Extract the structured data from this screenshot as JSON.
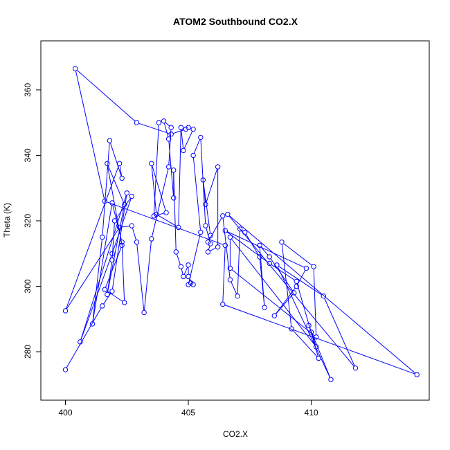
{
  "chart_data": {
    "type": "line",
    "title": "ATOM2 Southbound CO2.X",
    "xlabel": "CO2.X",
    "ylabel": "Theta (K)",
    "xlim": [
      399.0,
      414.8
    ],
    "ylim": [
      265.2,
      375.0
    ],
    "xticks": [
      400,
      405,
      410
    ],
    "yticks": [
      280,
      300,
      320,
      340,
      360
    ],
    "grid": false,
    "series": [
      {
        "color": "#0000FF",
        "marker": "open-circle",
        "points": [
          [
            400.0,
            274.5
          ],
          [
            401.5,
            294.0
          ],
          [
            401.9,
            298.5
          ],
          [
            402.5,
            328.5
          ],
          [
            400.6,
            283.0
          ],
          [
            401.9,
            310.0
          ],
          [
            402.7,
            327.5
          ],
          [
            402.0,
            320.0
          ],
          [
            401.9,
            308.0
          ],
          [
            401.7,
            297.5
          ],
          [
            402.4,
            325.0
          ],
          [
            401.7,
            337.5
          ],
          [
            402.3,
            312.5
          ],
          [
            401.6,
            299.0
          ],
          [
            402.4,
            295.0
          ],
          [
            402.3,
            313.5
          ],
          [
            401.9,
            325.5
          ],
          [
            401.1,
            288.5
          ],
          [
            401.5,
            315.0
          ],
          [
            401.8,
            344.5
          ],
          [
            402.3,
            333.0
          ],
          [
            402.2,
            337.5
          ],
          [
            400.0,
            292.5
          ],
          [
            402.2,
            318.0
          ],
          [
            402.7,
            318.5
          ],
          [
            402.9,
            313.5
          ],
          [
            403.2,
            292.0
          ],
          [
            403.5,
            314.5
          ],
          [
            404.2,
            336.5
          ],
          [
            404.3,
            348.5
          ],
          [
            404.0,
            350.5
          ],
          [
            404.2,
            345.0
          ],
          [
            404.4,
            327.0
          ],
          [
            404.4,
            335.5
          ],
          [
            404.5,
            310.5
          ],
          [
            404.7,
            306.0
          ],
          [
            404.8,
            303.0
          ],
          [
            405.0,
            306.5
          ],
          [
            405.0,
            303.0
          ],
          [
            405.2,
            300.5
          ],
          [
            405.1,
            301.0
          ],
          [
            405.0,
            300.5
          ],
          [
            405.5,
            316.5
          ],
          [
            405.2,
            340.0
          ],
          [
            405.5,
            345.5
          ],
          [
            405.7,
            318.5
          ],
          [
            405.9,
            313.0
          ],
          [
            405.8,
            310.5
          ],
          [
            406.2,
            312.0
          ],
          [
            406.2,
            336.5
          ],
          [
            405.7,
            325.0
          ],
          [
            405.6,
            332.5
          ],
          [
            405.9,
            315.5
          ],
          [
            405.8,
            313.5
          ],
          [
            406.4,
            321.5
          ],
          [
            406.7,
            302.0
          ],
          [
            407.0,
            297.0
          ],
          [
            407.1,
            317.5
          ],
          [
            407.3,
            316.5
          ],
          [
            407.9,
            309.0
          ],
          [
            408.1,
            293.5
          ],
          [
            407.9,
            312.5
          ],
          [
            408.3,
            309.0
          ],
          [
            409.3,
            298.0
          ],
          [
            408.5,
            291.0
          ],
          [
            409.4,
            300.0
          ],
          [
            409.8,
            305.5
          ],
          [
            406.5,
            317.0
          ],
          [
            408.3,
            307.0
          ],
          [
            409.4,
            301.5
          ],
          [
            410.3,
            278.0
          ],
          [
            409.2,
            287.0
          ],
          [
            408.8,
            313.5
          ],
          [
            410.1,
            306.0
          ],
          [
            410.2,
            284.5
          ],
          [
            406.7,
            305.5
          ],
          [
            406.7,
            315.0
          ],
          [
            410.2,
            281.5
          ],
          [
            410.0,
            286.0
          ],
          [
            409.9,
            288.0
          ],
          [
            410.8,
            271.5
          ],
          [
            408.6,
            306.5
          ],
          [
            410.5,
            297.0
          ],
          [
            411.8,
            275.0
          ],
          [
            406.6,
            322.0
          ],
          [
            414.3,
            273.0
          ],
          [
            406.4,
            294.5
          ],
          [
            406.5,
            312.5
          ],
          [
            401.6,
            326.0
          ],
          [
            400.4,
            366.5
          ],
          [
            402.9,
            350.0
          ],
          [
            404.3,
            346.5
          ],
          [
            404.9,
            348.0
          ],
          [
            405.0,
            348.5
          ],
          [
            405.2,
            348.0
          ],
          [
            404.8,
            341.5
          ],
          [
            404.7,
            348.5
          ],
          [
            404.6,
            318.0
          ],
          [
            403.7,
            322.0
          ],
          [
            403.5,
            337.5
          ],
          [
            404.1,
            322.5
          ],
          [
            403.6,
            321.5
          ],
          [
            403.8,
            350.0
          ]
        ]
      }
    ]
  }
}
